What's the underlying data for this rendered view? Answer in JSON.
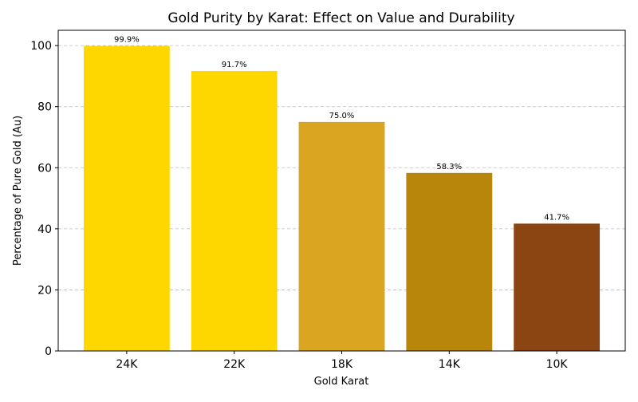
{
  "chart_data": {
    "type": "bar",
    "title": "Gold Purity by Karat: Effect on Value and Durability",
    "xlabel": "Gold Karat",
    "ylabel": "Percentage of Pure Gold (Au)",
    "categories": [
      "24K",
      "22K",
      "18K",
      "14K",
      "10K"
    ],
    "values": [
      99.9,
      91.7,
      75.0,
      58.3,
      41.7
    ],
    "data_labels": [
      "99.9%",
      "91.7%",
      "75.0%",
      "58.3%",
      "41.7%"
    ],
    "colors": [
      "#FFD700",
      "#FFD700",
      "#DAA520",
      "#B8860B",
      "#8B4513"
    ],
    "ylim": [
      0,
      105
    ],
    "yticks": [
      0,
      20,
      40,
      60,
      80,
      100
    ],
    "grid": "y-dashed",
    "legend": "none"
  }
}
